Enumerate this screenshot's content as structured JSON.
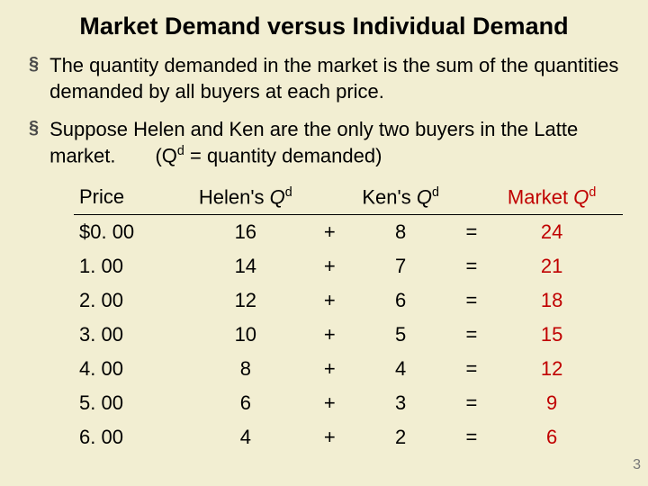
{
  "title": "Market Demand versus Individual Demand",
  "bullets": [
    "The quantity demanded in the market is the sum of the quantities demanded by all buyers at each price.",
    "Suppose Helen and Ken are the only two buyers in the Latte market.  (Q<sup>d</sup> = quantity demanded)"
  ],
  "table": {
    "type": "table",
    "columns": [
      "Price",
      "Helen's Q<sup>d</sup>",
      "",
      "Ken's Q<sup>d</sup>",
      "",
      "Market Q<sup>d</sup>"
    ],
    "column_styles": {
      "header_italic_Q": true,
      "market_color": "#c00000"
    },
    "rows": [
      [
        "$0. 00",
        "16",
        "+",
        "8",
        "=",
        "24"
      ],
      [
        "1. 00",
        "14",
        "+",
        "7",
        "=",
        "21"
      ],
      [
        "2. 00",
        "12",
        "+",
        "6",
        "=",
        "18"
      ],
      [
        "3. 00",
        "10",
        "+",
        "5",
        "=",
        "15"
      ],
      [
        "4. 00",
        "8",
        "+",
        "4",
        "=",
        "12"
      ],
      [
        "5. 00",
        "6",
        "+",
        "3",
        "=",
        "9"
      ],
      [
        "6. 00",
        "4",
        "+",
        "2",
        "=",
        "6"
      ]
    ]
  },
  "page_number": "3",
  "styling": {
    "background_color": "#f2eed2",
    "title_fontsize": 27,
    "body_fontsize": 22,
    "market_column_color": "#c00000",
    "bullet_marker": "§",
    "border_color": "#000000"
  }
}
